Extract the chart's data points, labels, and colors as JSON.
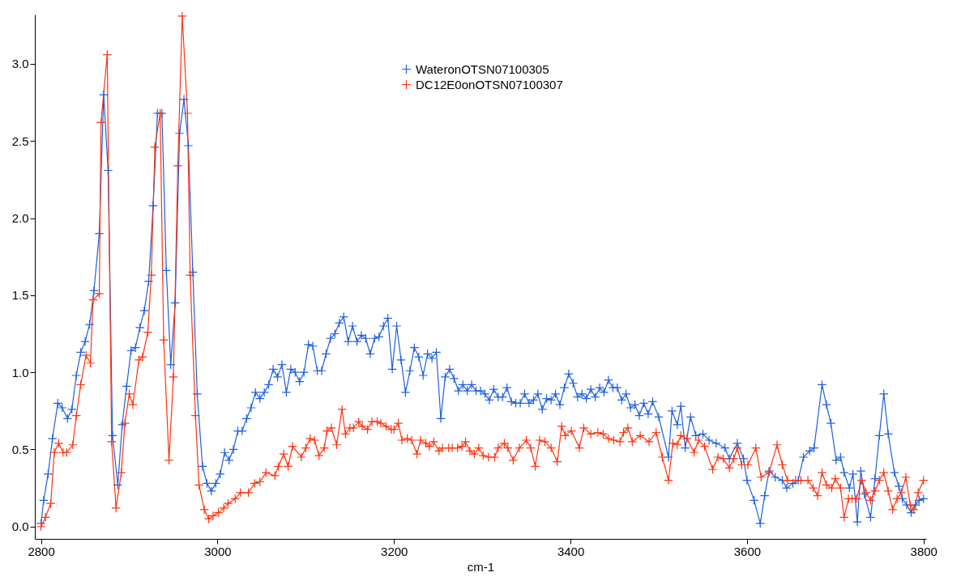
{
  "chart_data": {
    "type": "line",
    "xlabel": "cm-1",
    "xlim": [
      2793,
      3803
    ],
    "xticks": [
      2800,
      3000,
      3200,
      3400,
      3600,
      3800
    ],
    "ylim": [
      -0.08,
      3.32
    ],
    "yticks": [
      {
        "value": 0,
        "label": "0.0"
      },
      {
        "value": 0.5,
        "label": "0.5"
      },
      {
        "value": 1,
        "label": "1.0"
      },
      {
        "value": 1.5,
        "label": "1.5"
      },
      {
        "value": 2,
        "label": "2.0"
      },
      {
        "value": 2.5,
        "label": "2.5"
      },
      {
        "value": 3,
        "label": "3.0"
      }
    ],
    "grid": false,
    "legend": "top",
    "marker": "cross",
    "line_style": "solid",
    "series": [
      {
        "name": "WateronOTSN07100305",
        "color": "#1f5fe0",
        "x": [
          2800,
          2803,
          2808,
          2813,
          2819,
          2824,
          2830,
          2835,
          2840,
          2845,
          2850,
          2855,
          2860,
          2866,
          2871,
          2876,
          2881,
          2887,
          2892,
          2897,
          2902,
          2907,
          2912,
          2917,
          2922,
          2927,
          2932,
          2937,
          2942,
          2947,
          2952,
          2957,
          2962,
          2967,
          2972,
          2977,
          2983,
          2988,
          2993,
          2998,
          3003,
          3008,
          3013,
          3018,
          3023,
          3028,
          3033,
          3038,
          3043,
          3048,
          3053,
          3058,
          3063,
          3068,
          3073,
          3078,
          3083,
          3088,
          3093,
          3098,
          3103,
          3108,
          3113,
          3118,
          3123,
          3128,
          3133,
          3138,
          3143,
          3148,
          3153,
          3158,
          3163,
          3168,
          3173,
          3178,
          3183,
          3188,
          3193,
          3198,
          3203,
          3208,
          3213,
          3218,
          3223,
          3228,
          3233,
          3238,
          3243,
          3248,
          3253,
          3258,
          3263,
          3268,
          3273,
          3278,
          3283,
          3288,
          3293,
          3298,
          3303,
          3308,
          3313,
          3318,
          3323,
          3328,
          3333,
          3338,
          3343,
          3348,
          3353,
          3358,
          3363,
          3368,
          3373,
          3378,
          3383,
          3388,
          3393,
          3398,
          3403,
          3408,
          3413,
          3418,
          3423,
          3428,
          3433,
          3438,
          3443,
          3448,
          3453,
          3458,
          3463,
          3468,
          3473,
          3478,
          3483,
          3488,
          3493,
          3500,
          3511,
          3515,
          3521,
          3525,
          3530,
          3536,
          3542,
          3550,
          3557,
          3565,
          3575,
          3580,
          3589,
          3596,
          3600,
          3608,
          3615,
          3620,
          3625,
          3632,
          3640,
          3645,
          3652,
          3658,
          3664,
          3671,
          3676,
          3685,
          3690,
          3695,
          3701,
          3706,
          3710,
          3716,
          3720,
          3725,
          3729,
          3733,
          3740,
          3745,
          3750,
          3755,
          3760,
          3767,
          3772,
          3776,
          3781,
          3786,
          3791,
          3795,
          3800
        ],
        "values": [
          0.02,
          0.17,
          0.34,
          0.57,
          0.8,
          0.77,
          0.7,
          0.76,
          0.98,
          1.13,
          1.2,
          1.31,
          1.53,
          1.9,
          2.8,
          2.31,
          0.59,
          0.27,
          0.66,
          0.91,
          1.14,
          1.16,
          1.29,
          1.4,
          1.59,
          2.08,
          2.68,
          2.68,
          1.66,
          1.05,
          1.45,
          2.55,
          2.77,
          2.47,
          1.65,
          0.86,
          0.39,
          0.28,
          0.23,
          0.28,
          0.34,
          0.48,
          0.43,
          0.5,
          0.62,
          0.62,
          0.7,
          0.77,
          0.87,
          0.83,
          0.87,
          0.92,
          1.02,
          0.97,
          1.05,
          0.87,
          1.02,
          1.0,
          0.94,
          1.0,
          1.18,
          1.17,
          1.01,
          1.01,
          1.12,
          1.22,
          1.25,
          1.32,
          1.36,
          1.2,
          1.3,
          1.2,
          1.24,
          1.22,
          1.12,
          1.22,
          1.23,
          1.3,
          1.35,
          1.02,
          1.3,
          1.08,
          0.87,
          1.01,
          1.16,
          1.1,
          0.98,
          1.12,
          1.09,
          1.13,
          0.7,
          0.97,
          1.02,
          0.96,
          0.88,
          0.92,
          0.88,
          0.92,
          0.88,
          0.88,
          0.86,
          0.82,
          0.89,
          0.84,
          0.84,
          0.9,
          0.81,
          0.8,
          0.8,
          0.86,
          0.8,
          0.82,
          0.86,
          0.76,
          0.83,
          0.82,
          0.86,
          0.79,
          0.9,
          0.99,
          0.93,
          0.84,
          0.86,
          0.83,
          0.89,
          0.84,
          0.9,
          0.87,
          0.95,
          0.9,
          0.9,
          0.82,
          0.86,
          0.77,
          0.79,
          0.72,
          0.8,
          0.73,
          0.81,
          0.71,
          0.45,
          0.75,
          0.66,
          0.78,
          0.51,
          0.71,
          0.59,
          0.6,
          0.56,
          0.54,
          0.51,
          0.44,
          0.54,
          0.44,
          0.3,
          0.17,
          0.02,
          0.2,
          0.36,
          0.32,
          0.3,
          0.25,
          0.28,
          0.3,
          0.45,
          0.49,
          0.51,
          0.92,
          0.79,
          0.67,
          0.43,
          0.45,
          0.35,
          0.25,
          0.34,
          0.03,
          0.36,
          0.21,
          0.06,
          0.31,
          0.59,
          0.86,
          0.6,
          0.35,
          0.26,
          0.18,
          0.14,
          0.09,
          0.14,
          0.17,
          0.18
        ]
      },
      {
        "name": "DC12E0onOTSN07100307",
        "color": "#ff3311",
        "x": [
          2800,
          2805,
          2811,
          2815,
          2820,
          2825,
          2829,
          2836,
          2840,
          2845,
          2851,
          2856,
          2859,
          2866,
          2868,
          2875,
          2880,
          2885,
          2891,
          2895,
          2900,
          2904,
          2911,
          2915,
          2921,
          2925,
          2929,
          2935,
          2939,
          2945,
          2950,
          2955,
          2960,
          2966,
          2969,
          2975,
          2979,
          2985,
          2990,
          2995,
          3001,
          3007,
          3012,
          3020,
          3026,
          3035,
          3042,
          3048,
          3055,
          3065,
          3069,
          3075,
          3080,
          3085,
          3095,
          3100,
          3105,
          3110,
          3115,
          3121,
          3124,
          3129,
          3135,
          3141,
          3145,
          3150,
          3154,
          3160,
          3164,
          3170,
          3175,
          3181,
          3185,
          3191,
          3197,
          3200,
          3205,
          3209,
          3215,
          3220,
          3226,
          3230,
          3236,
          3240,
          3245,
          3251,
          3255,
          3262,
          3266,
          3272,
          3277,
          3281,
          3286,
          3291,
          3296,
          3301,
          3307,
          3314,
          3318,
          3325,
          3329,
          3335,
          3342,
          3350,
          3355,
          3360,
          3365,
          3371,
          3378,
          3385,
          3390,
          3394,
          3401,
          3410,
          3415,
          3423,
          3431,
          3437,
          3443,
          3449,
          3456,
          3460,
          3465,
          3470,
          3479,
          3489,
          3497,
          3504,
          3511,
          3516,
          3521,
          3525,
          3532,
          3540,
          3545,
          3552,
          3561,
          3567,
          3573,
          3580,
          3585,
          3589,
          3594,
          3601,
          3610,
          3616,
          3625,
          3634,
          3640,
          3646,
          3655,
          3661,
          3669,
          3675,
          3680,
          3685,
          3690,
          3696,
          3700,
          3706,
          3710,
          3715,
          3719,
          3724,
          3730,
          3735,
          3740,
          3745,
          3750,
          3755,
          3760,
          3765,
          3770,
          3775,
          3780,
          3785,
          3789,
          3794,
          3800
        ],
        "values": [
          0.0,
          0.06,
          0.15,
          0.48,
          0.54,
          0.48,
          0.48,
          0.53,
          0.72,
          0.92,
          1.11,
          1.06,
          1.47,
          1.51,
          2.62,
          3.06,
          0.55,
          0.12,
          0.35,
          0.67,
          0.86,
          0.79,
          1.08,
          1.1,
          1.26,
          1.63,
          2.46,
          2.68,
          1.21,
          0.43,
          0.97,
          2.34,
          3.31,
          2.68,
          1.63,
          0.72,
          0.27,
          0.11,
          0.05,
          0.07,
          0.09,
          0.12,
          0.15,
          0.18,
          0.22,
          0.22,
          0.28,
          0.29,
          0.35,
          0.33,
          0.39,
          0.47,
          0.39,
          0.52,
          0.45,
          0.51,
          0.57,
          0.56,
          0.46,
          0.51,
          0.62,
          0.64,
          0.53,
          0.76,
          0.6,
          0.64,
          0.64,
          0.68,
          0.65,
          0.63,
          0.68,
          0.68,
          0.67,
          0.65,
          0.63,
          0.63,
          0.67,
          0.56,
          0.57,
          0.56,
          0.47,
          0.56,
          0.54,
          0.52,
          0.55,
          0.49,
          0.51,
          0.51,
          0.51,
          0.51,
          0.52,
          0.55,
          0.49,
          0.47,
          0.51,
          0.46,
          0.45,
          0.45,
          0.51,
          0.54,
          0.51,
          0.43,
          0.51,
          0.56,
          0.51,
          0.39,
          0.56,
          0.55,
          0.51,
          0.42,
          0.65,
          0.59,
          0.62,
          0.51,
          0.64,
          0.6,
          0.61,
          0.6,
          0.57,
          0.56,
          0.55,
          0.61,
          0.64,
          0.55,
          0.59,
          0.55,
          0.61,
          0.45,
          0.3,
          0.54,
          0.53,
          0.59,
          0.57,
          0.48,
          0.56,
          0.52,
          0.37,
          0.45,
          0.44,
          0.38,
          0.44,
          0.51,
          0.4,
          0.4,
          0.51,
          0.32,
          0.35,
          0.53,
          0.4,
          0.3,
          0.3,
          0.3,
          0.3,
          0.25,
          0.2,
          0.35,
          0.27,
          0.25,
          0.31,
          0.25,
          0.06,
          0.18,
          0.18,
          0.18,
          0.3,
          0.22,
          0.17,
          0.23,
          0.3,
          0.35,
          0.23,
          0.11,
          0.18,
          0.22,
          0.32,
          0.14,
          0.11,
          0.22,
          0.3
        ]
      }
    ]
  }
}
